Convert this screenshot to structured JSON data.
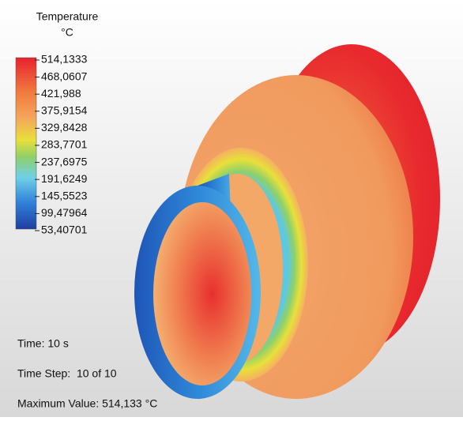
{
  "legend": {
    "title": "Temperature",
    "unit": "°C",
    "ticks": [
      "514,1333",
      "468,0607",
      "421,988",
      "375,9154",
      "329,8428",
      "283,7701",
      "237,6975",
      "191,6249",
      "145,5523",
      "99,47964",
      "53,40701"
    ]
  },
  "info": {
    "time": "Time: 10 s",
    "time_step": "Time Step:  10 of 10",
    "maximum": "Maximum Value: 514,133 °C"
  }
}
